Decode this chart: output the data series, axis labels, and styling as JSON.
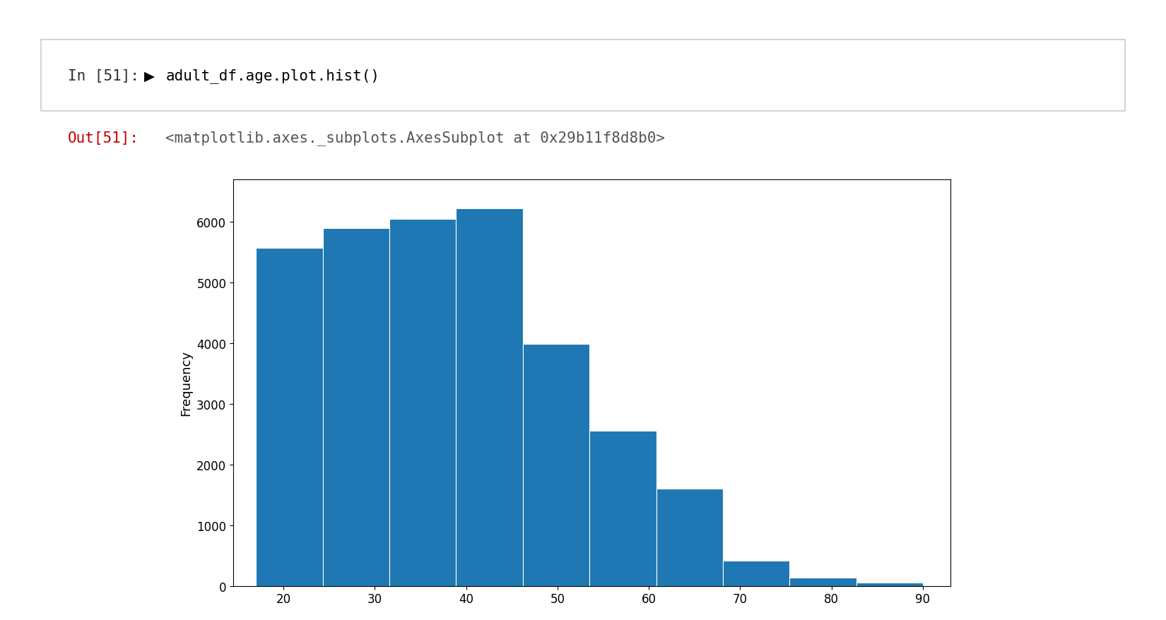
{
  "title": "",
  "ylabel": "Frequency",
  "xlabel": "",
  "bar_color": "#1f77b4",
  "ylim": [
    0,
    6700
  ],
  "yticks": [
    0,
    1000,
    2000,
    3000,
    4000,
    5000,
    6000
  ],
  "xticks": [
    20,
    30,
    40,
    50,
    60,
    70,
    80,
    90
  ],
  "bin_left": [
    17.0,
    24.3,
    31.6,
    38.9,
    46.2,
    53.5,
    60.8,
    68.1,
    75.4,
    82.7
  ],
  "bin_width": 7.3,
  "bar_heights": [
    5572,
    5897,
    6043,
    6220,
    3993,
    2557,
    1603,
    413,
    137,
    50
  ],
  "xlim": [
    14.5,
    93.0
  ],
  "background_color": "#ffffff",
  "header_in_label": "In [51]:",
  "header_code": "adult_df.age.plot.hist()",
  "header_out_label": "Out[51]:",
  "header_out_text": "<matplotlib.axes._subplots.AxesSubplot at 0x29b11f8d8b0>",
  "cell_border_color": "#cccccc",
  "in_color": "#303030",
  "out_color": "#c00000",
  "code_color": "#000000",
  "out_text_color": "#555555",
  "font_size_header": 15,
  "font_size_tick": 12,
  "font_size_ylabel": 13
}
